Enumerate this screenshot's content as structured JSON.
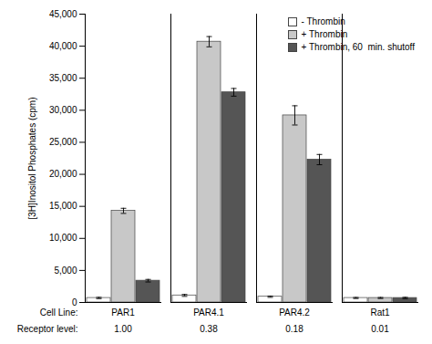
{
  "chart_data": {
    "type": "bar",
    "categories": [
      "PAR1",
      "PAR4.1",
      "PAR4.2",
      "Rat1"
    ],
    "xlabel": "Cell Line:",
    "annotations": [
      {
        "label": "Receptor level:",
        "texts": [
          "1.00",
          "0.38",
          "0.18",
          "0.01"
        ]
      }
    ],
    "series": [
      {
        "name": "- Thrombin",
        "color": "#ffffff",
        "values": [
          700,
          1100,
          900,
          700
        ],
        "errors": [
          100,
          150,
          100,
          80
        ]
      },
      {
        "name": "+ Thrombin",
        "color": "#c8c8c8",
        "values": [
          14300,
          40700,
          29200,
          700
        ],
        "errors": [
          400,
          800,
          1500,
          80
        ]
      },
      {
        "name": "+ Thrombin, 60  min. shutoff",
        "color": "#555555",
        "values": [
          3400,
          32800,
          22300,
          700
        ],
        "errors": [
          200,
          600,
          800,
          100
        ]
      }
    ],
    "ylabel": "[3H]Inositol Phosphates (cpm)",
    "ylim": [
      0,
      45000
    ],
    "yticks": [
      0,
      {
        "value": 5000,
        "label": "5,000"
      },
      {
        "value": 10000,
        "label": "10,000"
      },
      {
        "value": 15000,
        "label": "15,000"
      },
      {
        "value": 20000,
        "label": "20,000"
      },
      {
        "value": 25000,
        "label": "25,000"
      },
      {
        "value": 30000,
        "label": "30,000"
      },
      {
        "value": 35000,
        "label": "35,000"
      },
      {
        "value": 40000,
        "label": "40,000"
      },
      {
        "value": 45000,
        "label": "45,000"
      }
    ],
    "legend": "upper right"
  }
}
